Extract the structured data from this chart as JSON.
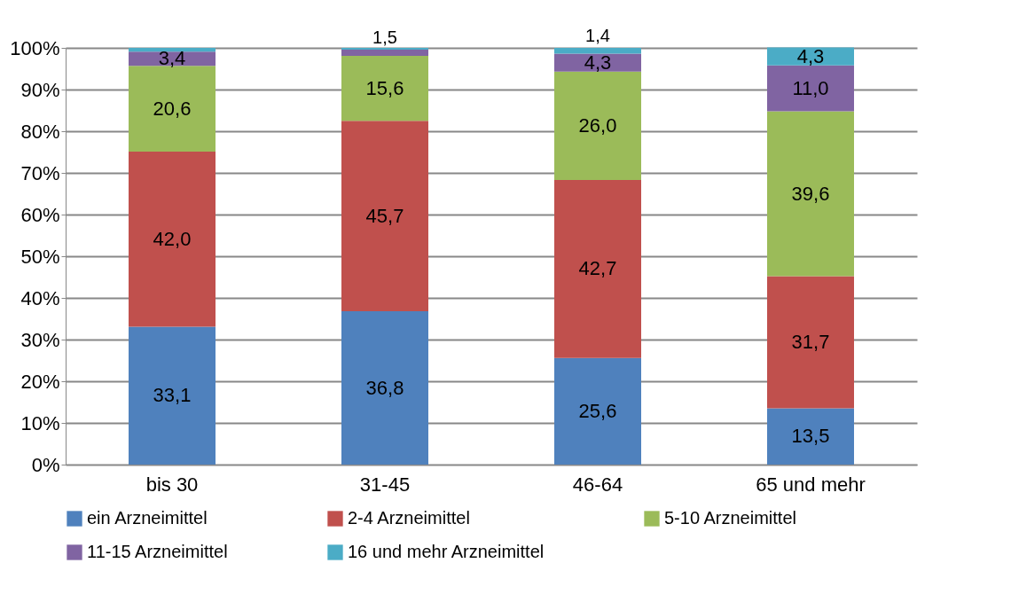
{
  "chart_data": {
    "type": "bar",
    "stacked": true,
    "categories": [
      "bis 30",
      "31-45",
      "46-64",
      "65 und mehr"
    ],
    "series": [
      {
        "name": "ein Arzneimittel",
        "color": "#4f81bd",
        "values": [
          33.1,
          36.8,
          25.6,
          13.5
        ],
        "value_labels": [
          "33,1",
          "36,8",
          "25,6",
          "13,5"
        ]
      },
      {
        "name": "2-4 Arzneimittel",
        "color": "#c0504d",
        "values": [
          42.0,
          45.7,
          42.7,
          31.7
        ],
        "value_labels": [
          "42,0",
          "45,7",
          "42,7",
          "31,7"
        ]
      },
      {
        "name": "5-10 Arzneimittel",
        "color": "#9bbb59",
        "values": [
          20.6,
          15.6,
          26.0,
          39.6
        ],
        "value_labels": [
          "20,6",
          "15,6",
          "26,0",
          "39,6"
        ]
      },
      {
        "name": "11-15 Arzneimittel",
        "color": "#8064a2",
        "values": [
          3.4,
          1.5,
          4.3,
          11.0
        ],
        "value_labels": [
          "3,4",
          "1,5",
          "4,3",
          "11,0"
        ]
      },
      {
        "name": "16 und mehr Arzneimittel",
        "color": "#4bacc6",
        "values": [
          0.9,
          0.4,
          1.4,
          4.3
        ],
        "value_labels": [
          null,
          null,
          "1,4",
          "4,3"
        ]
      }
    ],
    "ylim": [
      0,
      100
    ],
    "yticks": [
      {
        "value": 0,
        "label": "0%"
      },
      {
        "value": 10,
        "label": "10%"
      },
      {
        "value": 20,
        "label": "20%"
      },
      {
        "value": 30,
        "label": "30%"
      },
      {
        "value": 40,
        "label": "40%"
      },
      {
        "value": 50,
        "label": "50%"
      },
      {
        "value": 60,
        "label": "60%"
      },
      {
        "value": 70,
        "label": "70%"
      },
      {
        "value": 80,
        "label": "80%"
      },
      {
        "value": 90,
        "label": "90%"
      },
      {
        "value": 100,
        "label": "100%"
      }
    ],
    "grid": "y",
    "legend": "bottom"
  }
}
